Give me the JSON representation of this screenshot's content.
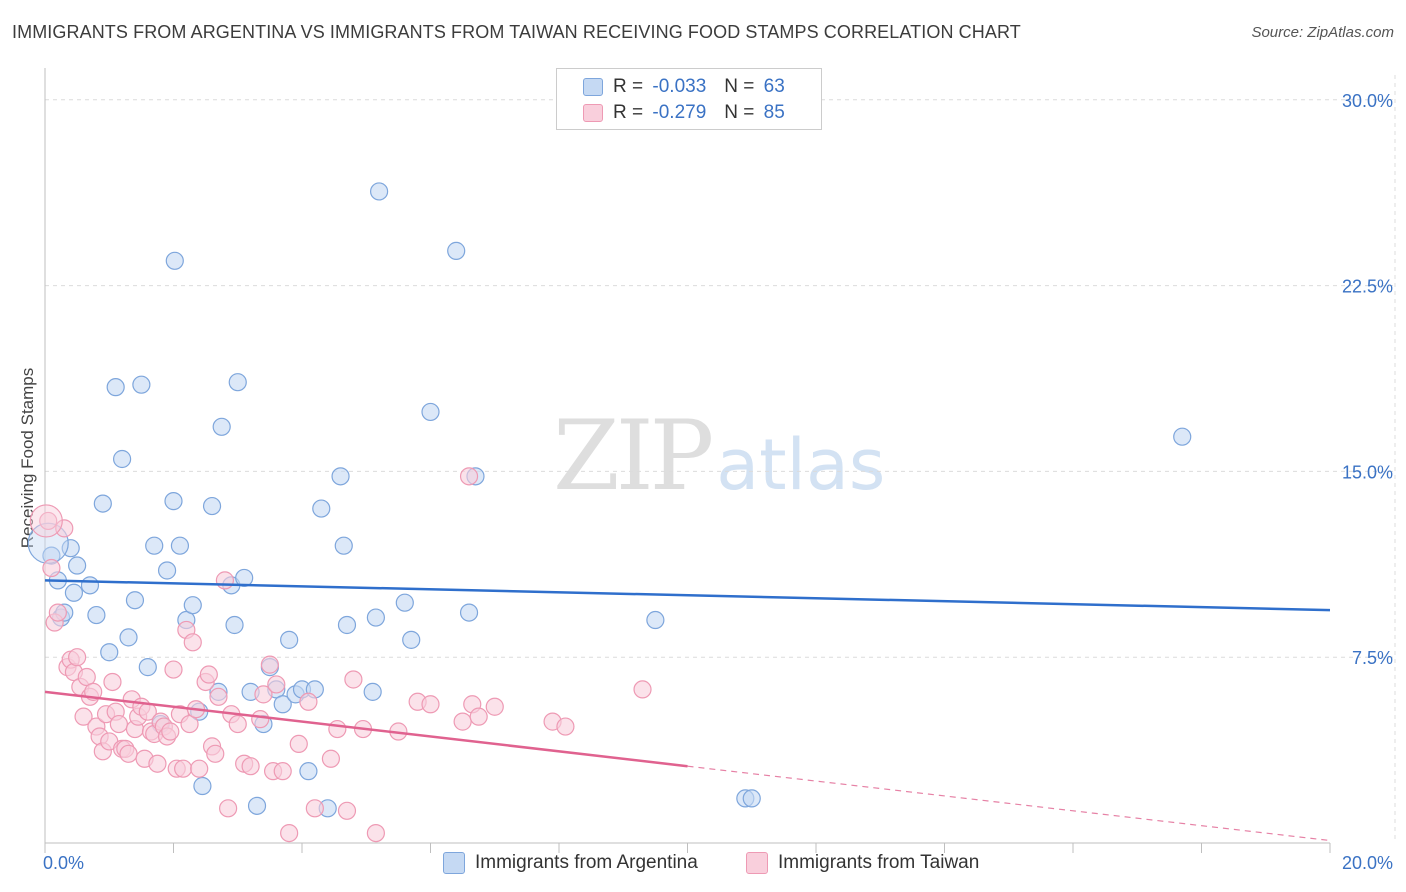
{
  "header": {
    "title": "IMMIGRANTS FROM ARGENTINA VS IMMIGRANTS FROM TAIWAN RECEIVING FOOD STAMPS CORRELATION CHART",
    "source": "Source: ZipAtlas.com"
  },
  "watermark": {
    "zip": "ZIP",
    "atlas": "atlas"
  },
  "legend_top": {
    "rows": [
      {
        "r_label": "R =",
        "r_value": "-0.033",
        "n_label": "N =",
        "n_value": "63"
      },
      {
        "r_label": "R =",
        "r_value": "-0.279",
        "n_label": "N =",
        "n_value": "85"
      }
    ]
  },
  "legend_bottom": {
    "argentina": "Immigrants from Argentina",
    "taiwan": "Immigrants from Taiwan"
  },
  "colors": {
    "argentina_fill": "#c5d9f3",
    "argentina_stroke": "#7ea6dc",
    "argentina_line": "#2f6fcc",
    "taiwan_fill": "#f9cfdc",
    "taiwan_stroke": "#ee9ab4",
    "taiwan_line": "#e0628f",
    "axis_text": "#3a72c4",
    "grid": "#dcdcdc"
  },
  "chart_data": {
    "type": "scatter",
    "title": "IMMIGRANTS FROM ARGENTINA VS IMMIGRANTS FROM TAIWAN RECEIVING FOOD STAMPS CORRELATION CHART",
    "xlabel": "",
    "ylabel": "Receiving Food Stamps",
    "xlim": [
      0,
      20
    ],
    "ylim": [
      0,
      31
    ],
    "x_tick_labels": [
      "0.0%",
      "20.0%"
    ],
    "y_ticks": [
      7.5,
      15.0,
      22.5,
      30.0
    ],
    "y_tick_labels": [
      "7.5%",
      "15.0%",
      "22.5%",
      "30.0%"
    ],
    "grid": true,
    "legend_position": "top-center",
    "series": [
      {
        "name": "Immigrants from Argentina",
        "R": -0.033,
        "N": 63,
        "trend": {
          "x": [
            0,
            20
          ],
          "y": [
            10.6,
            9.4
          ]
        },
        "points": [
          [
            0.1,
            11.6
          ],
          [
            0.2,
            10.6
          ],
          [
            0.25,
            9.1
          ],
          [
            0.3,
            9.3
          ],
          [
            0.4,
            11.9
          ],
          [
            0.45,
            10.1
          ],
          [
            0.5,
            11.2
          ],
          [
            0.7,
            10.4
          ],
          [
            0.8,
            9.2
          ],
          [
            0.9,
            13.7
          ],
          [
            1.0,
            7.7
          ],
          [
            1.1,
            18.4
          ],
          [
            1.2,
            15.5
          ],
          [
            1.3,
            8.3
          ],
          [
            1.4,
            9.8
          ],
          [
            1.5,
            18.5
          ],
          [
            1.6,
            7.1
          ],
          [
            1.7,
            12.0
          ],
          [
            1.8,
            4.8
          ],
          [
            1.9,
            11.0
          ],
          [
            2.0,
            13.8
          ],
          [
            2.02,
            23.5
          ],
          [
            2.1,
            12.0
          ],
          [
            2.2,
            9.0
          ],
          [
            2.3,
            9.6
          ],
          [
            2.4,
            5.3
          ],
          [
            2.45,
            2.3
          ],
          [
            2.6,
            13.6
          ],
          [
            2.7,
            6.1
          ],
          [
            2.75,
            16.8
          ],
          [
            2.9,
            10.4
          ],
          [
            2.95,
            8.8
          ],
          [
            3.0,
            18.6
          ],
          [
            3.1,
            10.7
          ],
          [
            3.2,
            6.1
          ],
          [
            3.3,
            1.5
          ],
          [
            3.4,
            4.8
          ],
          [
            3.5,
            7.1
          ],
          [
            3.6,
            6.2
          ],
          [
            3.7,
            5.6
          ],
          [
            3.8,
            8.2
          ],
          [
            3.9,
            6.0
          ],
          [
            4.0,
            6.2
          ],
          [
            4.1,
            2.9
          ],
          [
            4.2,
            6.2
          ],
          [
            4.3,
            13.5
          ],
          [
            4.4,
            1.4
          ],
          [
            4.6,
            14.8
          ],
          [
            4.65,
            12.0
          ],
          [
            4.7,
            8.8
          ],
          [
            5.1,
            6.1
          ],
          [
            5.15,
            9.1
          ],
          [
            5.2,
            26.3
          ],
          [
            5.6,
            9.7
          ],
          [
            5.7,
            8.2
          ],
          [
            6.0,
            17.4
          ],
          [
            6.4,
            23.9
          ],
          [
            6.6,
            9.3
          ],
          [
            6.7,
            14.8
          ],
          [
            9.5,
            9.0
          ],
          [
            10.9,
            1.8
          ],
          [
            11.0,
            1.8
          ],
          [
            17.7,
            16.4
          ]
        ]
      },
      {
        "name": "Immigrants from Taiwan",
        "R": -0.279,
        "N": 85,
        "trend": {
          "x": [
            0,
            10
          ],
          "y": [
            6.1,
            3.1
          ]
        },
        "trend_dashed": {
          "x": [
            10,
            20
          ],
          "y": [
            3.1,
            0.1
          ]
        },
        "points": [
          [
            0.05,
            13.0
          ],
          [
            0.1,
            11.1
          ],
          [
            0.15,
            8.9
          ],
          [
            0.2,
            9.3
          ],
          [
            0.3,
            12.7
          ],
          [
            0.35,
            7.1
          ],
          [
            0.4,
            7.4
          ],
          [
            0.45,
            6.9
          ],
          [
            0.5,
            7.5
          ],
          [
            0.55,
            6.3
          ],
          [
            0.6,
            5.1
          ],
          [
            0.65,
            6.7
          ],
          [
            0.7,
            5.9
          ],
          [
            0.75,
            6.1
          ],
          [
            0.8,
            4.7
          ],
          [
            0.85,
            4.3
          ],
          [
            0.9,
            3.7
          ],
          [
            0.95,
            5.2
          ],
          [
            1.0,
            4.1
          ],
          [
            1.05,
            6.5
          ],
          [
            1.1,
            5.3
          ],
          [
            1.15,
            4.8
          ],
          [
            1.2,
            3.8
          ],
          [
            1.25,
            3.8
          ],
          [
            1.3,
            3.6
          ],
          [
            1.35,
            5.8
          ],
          [
            1.4,
            4.6
          ],
          [
            1.45,
            5.1
          ],
          [
            1.5,
            5.5
          ],
          [
            1.55,
            3.4
          ],
          [
            1.6,
            5.3
          ],
          [
            1.65,
            4.5
          ],
          [
            1.7,
            4.4
          ],
          [
            1.75,
            3.2
          ],
          [
            1.8,
            4.9
          ],
          [
            1.85,
            4.7
          ],
          [
            1.9,
            4.3
          ],
          [
            1.95,
            4.5
          ],
          [
            2.0,
            7.0
          ],
          [
            2.05,
            3.0
          ],
          [
            2.1,
            5.2
          ],
          [
            2.15,
            3.0
          ],
          [
            2.2,
            8.6
          ],
          [
            2.25,
            4.8
          ],
          [
            2.3,
            8.1
          ],
          [
            2.35,
            5.4
          ],
          [
            2.4,
            3.0
          ],
          [
            2.5,
            6.5
          ],
          [
            2.55,
            6.8
          ],
          [
            2.6,
            3.9
          ],
          [
            2.65,
            3.6
          ],
          [
            2.7,
            5.9
          ],
          [
            2.8,
            10.6
          ],
          [
            2.85,
            1.4
          ],
          [
            2.9,
            5.2
          ],
          [
            3.0,
            4.8
          ],
          [
            3.1,
            3.2
          ],
          [
            3.2,
            3.1
          ],
          [
            3.35,
            5.0
          ],
          [
            3.4,
            6.0
          ],
          [
            3.5,
            7.2
          ],
          [
            3.55,
            2.9
          ],
          [
            3.6,
            6.4
          ],
          [
            3.7,
            2.9
          ],
          [
            3.8,
            0.4
          ],
          [
            3.95,
            4.0
          ],
          [
            4.1,
            5.7
          ],
          [
            4.2,
            1.4
          ],
          [
            4.45,
            3.4
          ],
          [
            4.55,
            4.6
          ],
          [
            4.7,
            1.3
          ],
          [
            4.8,
            6.6
          ],
          [
            4.95,
            4.6
          ],
          [
            5.15,
            0.4
          ],
          [
            5.5,
            4.5
          ],
          [
            5.8,
            5.7
          ],
          [
            6.0,
            5.6
          ],
          [
            6.5,
            4.9
          ],
          [
            6.6,
            14.8
          ],
          [
            6.65,
            5.6
          ],
          [
            6.75,
            5.1
          ],
          [
            7.0,
            5.5
          ],
          [
            7.9,
            4.9
          ],
          [
            8.1,
            4.7
          ],
          [
            9.3,
            6.2
          ]
        ]
      }
    ]
  }
}
